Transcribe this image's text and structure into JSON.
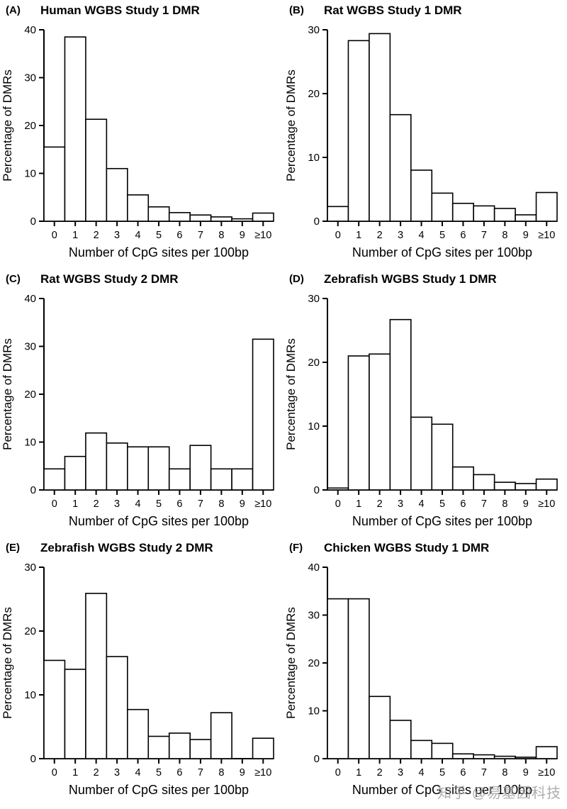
{
  "watermark": "知乎 @易基因科技",
  "chart_data": [
    {
      "type": "bar",
      "panel": "(A)",
      "title": "Human WGBS Study 1 DMR",
      "xlabel": "Number of CpG sites per 100bp",
      "ylabel": "Percentage of  DMRs",
      "categories": [
        "0",
        "1",
        "2",
        "3",
        "4",
        "5",
        "6",
        "7",
        "8",
        "9",
        "≥10"
      ],
      "values": [
        15.5,
        38.5,
        21.3,
        11.0,
        5.5,
        3.0,
        1.8,
        1.3,
        0.9,
        0.5,
        1.7
      ],
      "ylim": [
        0,
        40
      ],
      "yticks": [
        0,
        10,
        20,
        30,
        40
      ],
      "grid": false,
      "legend": "none"
    },
    {
      "type": "bar",
      "panel": "(B)",
      "title": "Rat WGBS Study 1 DMR",
      "xlabel": "Number of CpG sites per 100bp",
      "ylabel": "Percentage of  DMRs",
      "categories": [
        "0",
        "1",
        "2",
        "3",
        "4",
        "5",
        "6",
        "7",
        "8",
        "9",
        "≥10"
      ],
      "values": [
        2.3,
        28.3,
        29.4,
        16.7,
        8.0,
        4.4,
        2.8,
        2.4,
        2.0,
        1.0,
        4.5
      ],
      "ylim": [
        0,
        30
      ],
      "yticks": [
        0,
        10,
        20,
        30
      ],
      "grid": false,
      "legend": "none"
    },
    {
      "type": "bar",
      "panel": "(C)",
      "title": "Rat WGBS Study 2 DMR",
      "xlabel": "Number of CpG sites per 100bp",
      "ylabel": "Percentage of  DMRs",
      "categories": [
        "0",
        "1",
        "2",
        "3",
        "4",
        "5",
        "6",
        "7",
        "8",
        "9",
        "≥10"
      ],
      "values": [
        4.4,
        7.0,
        11.9,
        9.8,
        9.0,
        9.0,
        4.4,
        9.3,
        4.4,
        4.4,
        31.5
      ],
      "ylim": [
        0,
        40
      ],
      "yticks": [
        0,
        10,
        20,
        30,
        40
      ],
      "grid": false,
      "legend": "none"
    },
    {
      "type": "bar",
      "panel": "(D)",
      "title": "Zebrafish WGBS Study 1 DMR",
      "xlabel": "Number of CpG sites per 100bp",
      "ylabel": "Percentage of  DMRs",
      "categories": [
        "0",
        "1",
        "2",
        "3",
        "4",
        "5",
        "6",
        "7",
        "8",
        "9",
        "≥10"
      ],
      "values": [
        0.3,
        21.0,
        21.3,
        26.7,
        11.4,
        10.3,
        3.6,
        2.4,
        1.2,
        1.0,
        1.7
      ],
      "ylim": [
        0,
        30
      ],
      "yticks": [
        0,
        10,
        20,
        30
      ],
      "grid": false,
      "legend": "none"
    },
    {
      "type": "bar",
      "panel": "(E)",
      "title": "Zebrafish WGBS Study 2 DMR",
      "xlabel": "Number of CpG sites per 100bp",
      "ylabel": "Percentage of  DMRs",
      "categories": [
        "0",
        "1",
        "2",
        "3",
        "4",
        "5",
        "6",
        "7",
        "8",
        "9",
        "≥10"
      ],
      "values": [
        15.4,
        14.0,
        25.9,
        16.0,
        7.7,
        3.5,
        4.0,
        3.0,
        7.2,
        0.0,
        3.2
      ],
      "ylim": [
        0,
        30
      ],
      "yticks": [
        0,
        10,
        20,
        30
      ],
      "grid": false,
      "legend": "none"
    },
    {
      "type": "bar",
      "panel": "(F)",
      "title": "Chicken WGBS Study 1 DMR",
      "xlabel": "Number of CpG sites per 100bp",
      "ylabel": "Percentage of  DMRs",
      "categories": [
        "0",
        "1",
        "2",
        "3",
        "4",
        "5",
        "6",
        "7",
        "8",
        "9",
        "≥10"
      ],
      "values": [
        33.4,
        33.4,
        13.0,
        8.0,
        3.8,
        3.2,
        1.0,
        0.8,
        0.5,
        0.3,
        2.5
      ],
      "ylim": [
        0,
        40
      ],
      "yticks": [
        0,
        10,
        20,
        30,
        40
      ],
      "grid": false,
      "legend": "none"
    }
  ],
  "style": {
    "bar_fill": "#ffffff",
    "bar_stroke": "#000000",
    "axis_color": "#000000",
    "watermark_color": "#9a9a9a"
  }
}
